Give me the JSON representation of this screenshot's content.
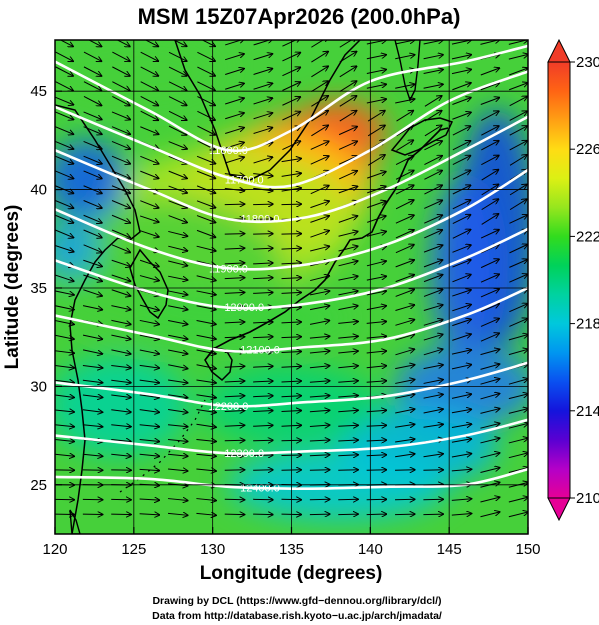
{
  "chart_data": {
    "type": "heatmap",
    "title": "MSM 15Z07Apr2026 (200.0hPa)",
    "xlabel": "Longitude (degrees)",
    "ylabel": "Latitude  (degrees)",
    "xlim": [
      120,
      150
    ],
    "ylim": [
      22.5,
      47.6
    ],
    "xticks": [
      "120",
      "125",
      "130",
      "135",
      "140",
      "145",
      "150"
    ],
    "yticks": [
      "25",
      "30",
      "35",
      "40",
      "45"
    ],
    "colorbar": {
      "range": [
        210,
        230
      ],
      "ticks": [
        "210",
        "214",
        "218",
        "222",
        "226",
        "230"
      ],
      "colors": [
        "#e60096",
        "#b400c8",
        "#5a00d2",
        "#1414dc",
        "#0a50f0",
        "#0096f0",
        "#00c8dc",
        "#00d2a0",
        "#00d25a",
        "#32dc1e",
        "#96e61e",
        "#dcf014",
        "#ffdc14",
        "#ffa014",
        "#ff6414",
        "#f03c28"
      ]
    },
    "contours": [
      {
        "label": "11600.0",
        "level": 11600,
        "lat_lon": [
          [
            120,
            46.5
          ],
          [
            126,
            44.0
          ],
          [
            131,
            42.0
          ],
          [
            135,
            43.0
          ],
          [
            140,
            45.5
          ],
          [
            146,
            46.5
          ],
          [
            150,
            47.3
          ]
        ]
      },
      {
        "label": "11700.0",
        "level": 11700,
        "lat_lon": [
          [
            120,
            44.2
          ],
          [
            126,
            42.2
          ],
          [
            131,
            40.6
          ],
          [
            135,
            40.2
          ],
          [
            140,
            42.0
          ],
          [
            145,
            44.5
          ],
          [
            150,
            46.0
          ]
        ]
      },
      {
        "label": "11800.0",
        "level": 11800,
        "lat_lon": [
          [
            120,
            42.0
          ],
          [
            126,
            40.0
          ],
          [
            131,
            38.5
          ],
          [
            136,
            38.6
          ],
          [
            141,
            40.0
          ],
          [
            146,
            42.0
          ],
          [
            150,
            43.7
          ]
        ]
      },
      {
        "label": "11900.0",
        "level": 11900,
        "lat_lon": [
          [
            120,
            39.0
          ],
          [
            126,
            37.0
          ],
          [
            131,
            36.0
          ],
          [
            136,
            36.2
          ],
          [
            141,
            37.2
          ],
          [
            146,
            39.0
          ],
          [
            150,
            41.0
          ]
        ]
      },
      {
        "label": "12000.0",
        "level": 12000,
        "lat_lon": [
          [
            120,
            36.4
          ],
          [
            126,
            34.8
          ],
          [
            131,
            34.0
          ],
          [
            136,
            34.2
          ],
          [
            141,
            35.0
          ],
          [
            146,
            36.5
          ],
          [
            150,
            38.0
          ]
        ]
      },
      {
        "label": "12100.0",
        "level": 12100,
        "lat_lon": [
          [
            120,
            33.6
          ],
          [
            126,
            32.6
          ],
          [
            131,
            31.8
          ],
          [
            136,
            32.0
          ],
          [
            141,
            32.4
          ],
          [
            146,
            33.6
          ],
          [
            150,
            35.0
          ]
        ]
      },
      {
        "label": "12200.0",
        "level": 12200,
        "lat_lon": [
          [
            120,
            30.2
          ],
          [
            126,
            29.6
          ],
          [
            131,
            29.0
          ],
          [
            136,
            29.2
          ],
          [
            141,
            29.5
          ],
          [
            146,
            30.3
          ],
          [
            150,
            31.2
          ]
        ]
      },
      {
        "label": "12300.0",
        "level": 12300,
        "lat_lon": [
          [
            120,
            27.5
          ],
          [
            126,
            27.0
          ],
          [
            131,
            26.6
          ],
          [
            136,
            26.7
          ],
          [
            141,
            26.9
          ],
          [
            146,
            27.5
          ],
          [
            150,
            28.3
          ]
        ]
      },
      {
        "label": "12400.0",
        "level": 12400,
        "lat_lon": [
          [
            120,
            25.4
          ],
          [
            126,
            25.3
          ],
          [
            131,
            24.9
          ],
          [
            136,
            24.8
          ],
          [
            141,
            24.9
          ],
          [
            146,
            25.0
          ],
          [
            150,
            25.8
          ]
        ]
      }
    ]
  },
  "credits": {
    "line1": "Drawing by DCL (https://www.gfd−dennou.org/library/dcl/)",
    "line2": "Data from http://database.rish.kyoto−u.ac.jp/arch/jmadata/"
  }
}
